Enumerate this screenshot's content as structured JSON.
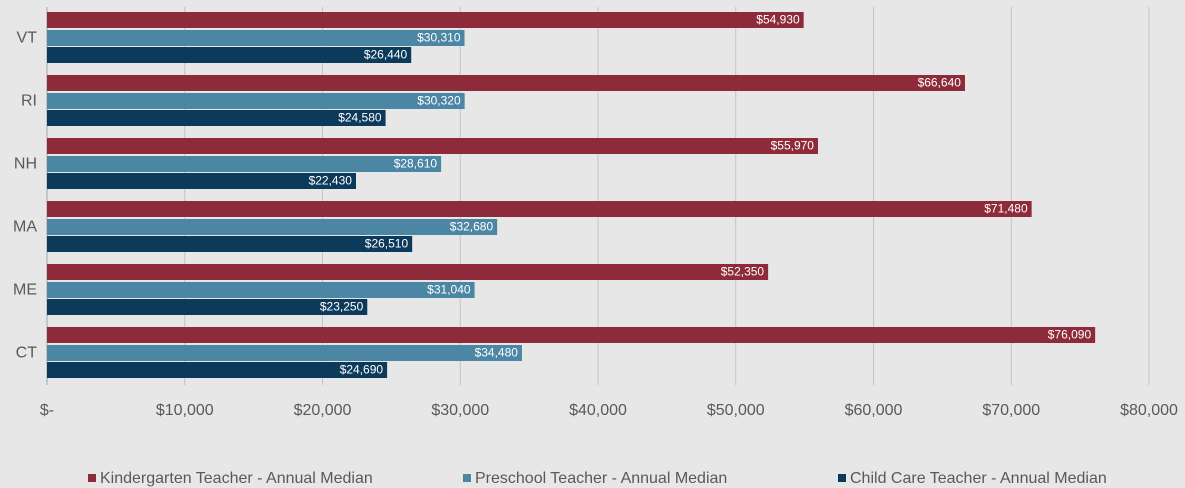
{
  "chart_data": {
    "type": "hbar",
    "categories": [
      "VT",
      "RI",
      "NH",
      "MA",
      "ME",
      "CT"
    ],
    "series": [
      {
        "name": "Kindergarten Teacher - Annual Median",
        "color": "#8e2b3b",
        "values": [
          54930,
          66640,
          55970,
          71480,
          52350,
          76090
        ],
        "value_labels": [
          "$54,930",
          "$66,640",
          "$55,970",
          "$71,480",
          "$52,350",
          "$76,090"
        ]
      },
      {
        "name": "Preschool Teacher - Annual Median",
        "color": "#4b87a5",
        "values": [
          30310,
          30320,
          28610,
          32680,
          31040,
          34480
        ],
        "value_labels": [
          "$30,310",
          "$30,320",
          "$28,610",
          "$32,680",
          "$31,040",
          "$34,480"
        ]
      },
      {
        "name": "Child Care Teacher - Annual  Median",
        "color": "#0c3a5b",
        "values": [
          26440,
          24580,
          22430,
          26510,
          23250,
          24690
        ],
        "value_labels": [
          "$26,440",
          "$24,580",
          "$22,430",
          "$26,510",
          "$23,250",
          "$24,690"
        ]
      }
    ],
    "xlim": [
      0,
      80000
    ],
    "xticks": [
      {
        "value": 0,
        "label": "$-"
      },
      {
        "value": 10000,
        "label": "$10,000"
      },
      {
        "value": 20000,
        "label": "$20,000"
      },
      {
        "value": 30000,
        "label": "$30,000"
      },
      {
        "value": 40000,
        "label": "$40,000"
      },
      {
        "value": 50000,
        "label": "$50,000"
      },
      {
        "value": 60000,
        "label": "$60,000"
      },
      {
        "value": 70000,
        "label": "$70,000"
      },
      {
        "value": 80000,
        "label": "$80,000"
      }
    ],
    "grid": true,
    "legend": "bottom"
  }
}
